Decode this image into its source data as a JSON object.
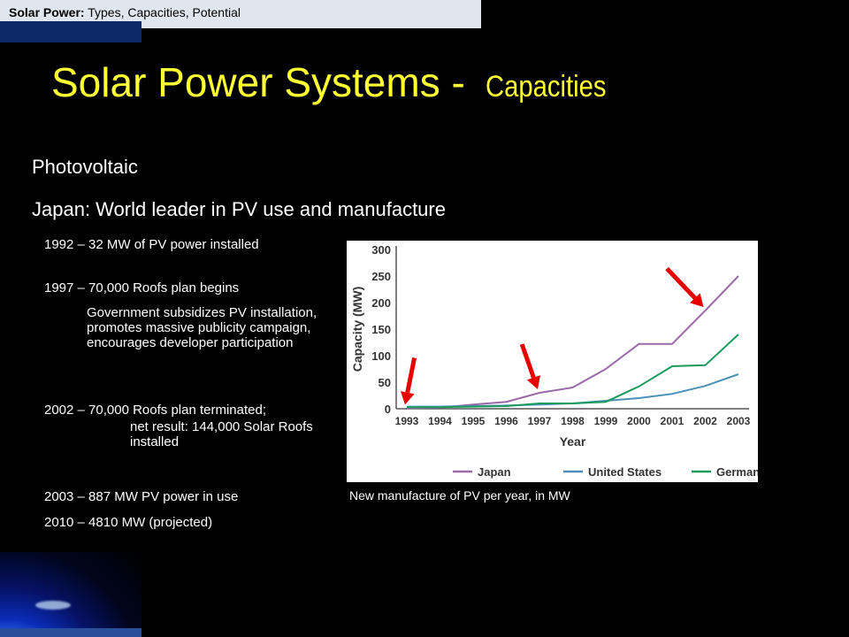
{
  "header": {
    "bold": "Solar Power:",
    "rest": " Types, Capacities, Potential"
  },
  "title": {
    "main": "Solar Power Systems - ",
    "sub": "Capacities"
  },
  "subheadings": [
    "Photovoltaic",
    "Japan:  World leader in PV use and manufacture"
  ],
  "timeline": {
    "y1992": "1992 – 32 MW of PV power installed",
    "y1997": "1997 – 70,000 Roofs plan begins",
    "y1997_note": "Government subsidizes PV installation, promotes massive publicity campaign, encourages developer participation",
    "y2002": "2002 – 70,000 Roofs plan terminated;",
    "y2002_note": "net result:  144,000 Solar Roofs installed",
    "y2003": "2003 – 887 MW PV power in use",
    "y2010": "2010 – 4810 MW (projected)"
  },
  "caption": "New manufacture of PV per year, in MW",
  "chart_data": {
    "type": "line",
    "xlabel": "Year",
    "ylabel": "Capacity (MW)",
    "x": [
      "1993",
      "1994",
      "1995",
      "1996",
      "1997",
      "1998",
      "1999",
      "2000",
      "2001",
      "2002",
      "2003"
    ],
    "ylim": [
      0,
      300
    ],
    "yticks": [
      0,
      50,
      100,
      150,
      200,
      250,
      300
    ],
    "grid": false,
    "legend_position": "bottom",
    "series": [
      {
        "name": "Japan",
        "color": "#9b6aa8",
        "values": [
          1,
          2,
          8,
          13,
          30,
          40,
          75,
          122,
          122,
          185,
          250
        ]
      },
      {
        "name": "United States",
        "color": "#4a90b8",
        "values": [
          4,
          4,
          5,
          6,
          8,
          10,
          15,
          20,
          28,
          43,
          65
        ]
      },
      {
        "name": "Germany",
        "color": "#1a9a5c",
        "values": [
          3,
          3,
          4,
          5,
          10,
          10,
          13,
          42,
          80,
          82,
          140
        ]
      }
    ],
    "annotations": [
      {
        "type": "arrow",
        "color": "#e60000",
        "x": "1993"
      },
      {
        "type": "arrow",
        "color": "#e60000",
        "x": "1997"
      },
      {
        "type": "arrow",
        "color": "#e60000",
        "x": "2002"
      }
    ]
  }
}
